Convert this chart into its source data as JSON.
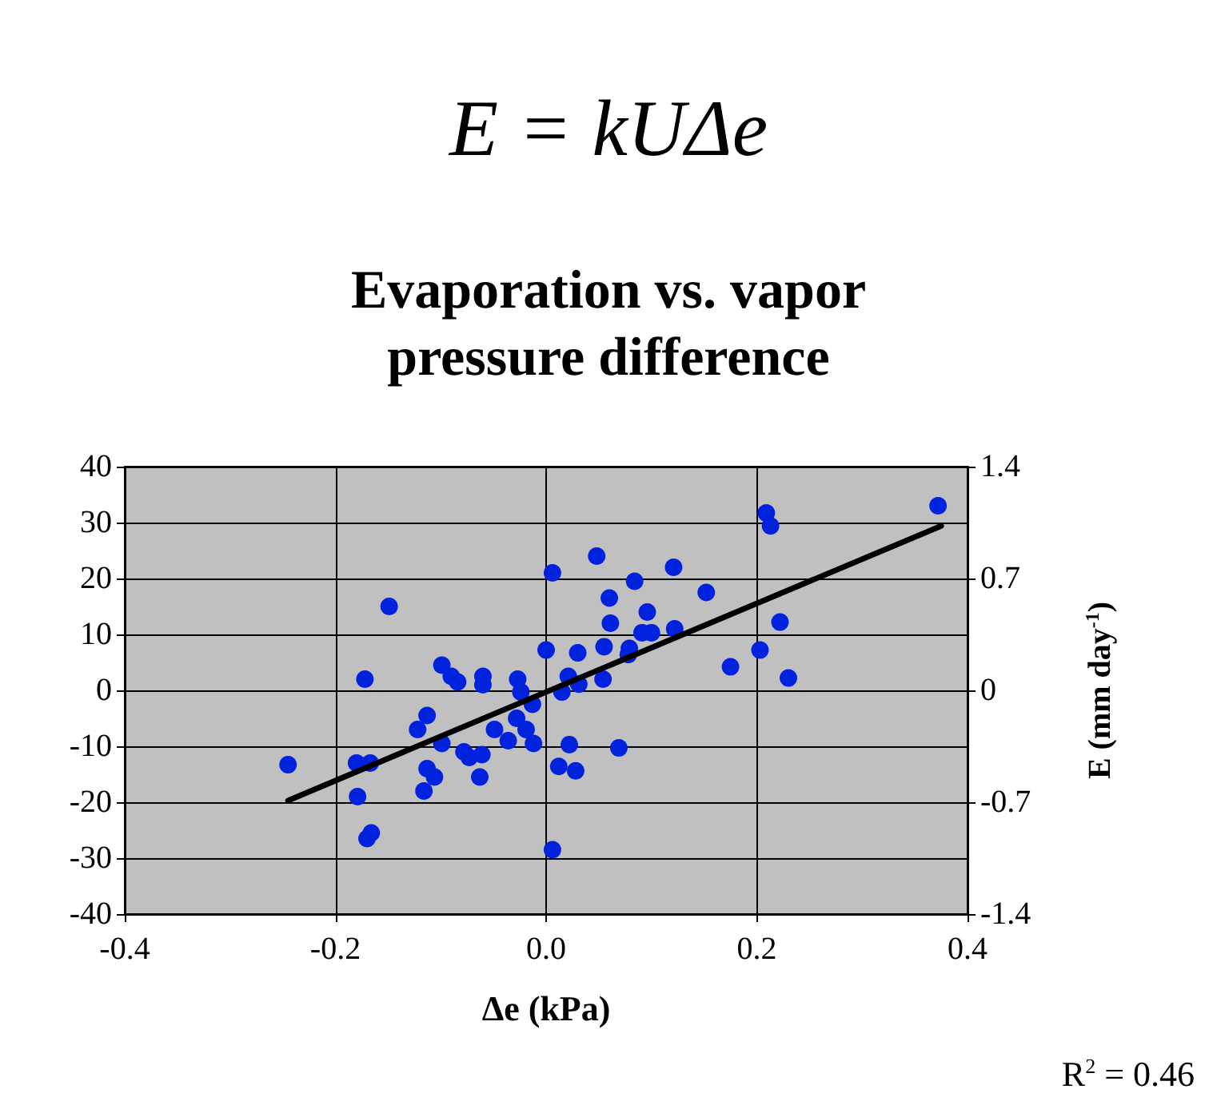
{
  "chart_data": {
    "type": "scatter",
    "title": "E = kUΔe",
    "subtitle": "Evaporation vs. vapor\npressure difference",
    "xlabel": "Δe (kPa)",
    "y2label": "E (mm day$^{-1}$)",
    "annotations": [
      "R$^{2}$ = 0.46"
    ],
    "xlim": [
      -0.4,
      0.4
    ],
    "xticks": [
      {
        "value": -0.4,
        "label": "-0.4"
      },
      {
        "value": -0.2,
        "label": "-0.2"
      },
      {
        "value": 0,
        "label": "0.0"
      },
      {
        "value": 0.2,
        "label": "0.2"
      },
      {
        "value": 0.4,
        "label": "0.4"
      }
    ],
    "ylim": [
      -40,
      40
    ],
    "yticks": [
      -40,
      -30,
      -20,
      -10,
      0,
      10,
      20,
      30,
      40
    ],
    "y2lim": [
      -1.4,
      1.4
    ],
    "y2ticks": [
      -1.4,
      -0.7,
      0,
      0.7,
      1.4
    ],
    "grid": true,
    "marker": "circle",
    "series": [
      {
        "color": "#0022dd",
        "x": [
          -0.245,
          -0.149,
          -0.172,
          -0.18,
          -0.179,
          -0.17,
          -0.166,
          -0.167,
          -0.122,
          -0.113,
          -0.116,
          -0.113,
          -0.106,
          -0.099,
          -0.09,
          -0.084,
          -0.099,
          -0.078,
          -0.073,
          -0.061,
          -0.063,
          -0.06,
          -0.06,
          -0.049,
          -0.036,
          -0.028,
          -0.027,
          -0.013,
          -0.012,
          -0.019,
          -0.024,
          0.0,
          0.006,
          0.006,
          0.048,
          0.121,
          0.084,
          0.06,
          0.152,
          0.096,
          0.061,
          0.122,
          0.091,
          0.1,
          0.055,
          0.03,
          0.079,
          0.078,
          0.021,
          0.054,
          0.031,
          0.015,
          0.022,
          0.012,
          0.028,
          0.069,
          0.175,
          0.203,
          0.222,
          0.23,
          0.209,
          0.213,
          0.372
        ],
        "values": [
          -13.3,
          15,
          2,
          -13,
          -19,
          -26.5,
          -25.5,
          -13,
          -7,
          -4.5,
          -18,
          -14,
          -15.5,
          4.5,
          2.5,
          1.5,
          -9.5,
          -11,
          -12,
          -11.5,
          -15.5,
          2.5,
          1,
          -7,
          -9,
          -5,
          2,
          -2.5,
          -9.5,
          -7,
          -0.3,
          7.2,
          21,
          -28.5,
          24,
          22,
          19.5,
          16.5,
          17.5,
          14,
          12,
          11,
          10.3,
          10.3,
          7.8,
          6.7,
          7.5,
          6.4,
          2.5,
          2,
          1.1,
          -0.3,
          -9.7,
          -13.6,
          -14.4,
          -10.3,
          4.2,
          7.2,
          12.2,
          2.2,
          31.7,
          29.4,
          33
        ]
      },
      {
        "type": "line",
        "color": "#000000",
        "marker": "none",
        "x": [
          -0.245,
          0.375
        ],
        "values": [
          -19.7,
          29.4
        ]
      }
    ]
  }
}
